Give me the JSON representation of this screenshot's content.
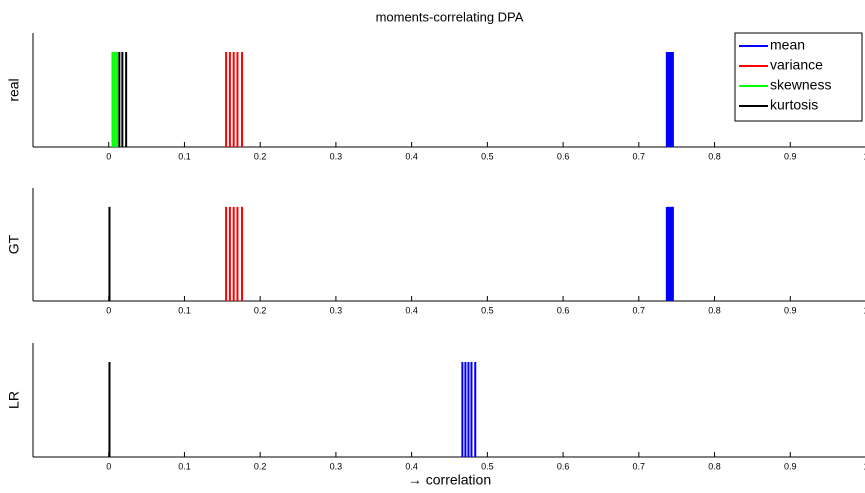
{
  "chart_data": [
    {
      "type": "spike",
      "title": "moments-correlating DPA",
      "ylabel": "real",
      "xlim": [
        -0.1,
        1.0
      ],
      "xticks": [
        0,
        0.1,
        0.2,
        0.3,
        0.4,
        0.5,
        0.6,
        0.7,
        0.8,
        0.9,
        1
      ],
      "ylim": [
        0,
        1.2
      ],
      "stem_height": 1,
      "legend": "upper right",
      "series": [
        {
          "name": "mean",
          "color": "#0000ff",
          "x": [
            0.737,
            0.739,
            0.741,
            0.743,
            0.745
          ]
        },
        {
          "name": "variance",
          "color": "#ff0000",
          "x": [
            0.155,
            0.16,
            0.165,
            0.17,
            0.176
          ]
        },
        {
          "name": "skewness",
          "color": "#00ff00",
          "x": [
            0.005,
            0.008,
            0.011
          ]
        },
        {
          "name": "kurtosis",
          "color": "#000000",
          "x": [
            0.014,
            0.018,
            0.023
          ]
        }
      ]
    },
    {
      "type": "spike",
      "ylabel": "GT",
      "xlim": [
        -0.1,
        1.0
      ],
      "xticks": [
        0,
        0.1,
        0.2,
        0.3,
        0.4,
        0.5,
        0.6,
        0.7,
        0.8,
        0.9,
        1
      ],
      "ylim": [
        0,
        1.2
      ],
      "stem_height": 1,
      "series": [
        {
          "color": "#0000ff",
          "x": [
            0.737,
            0.739,
            0.741,
            0.743,
            0.745
          ]
        },
        {
          "color": "#ff0000",
          "x": [
            0.155,
            0.16,
            0.165,
            0.17,
            0.176
          ]
        },
        {
          "color": "#00ff00",
          "x": [
            0.001
          ]
        },
        {
          "color": "#000000",
          "x": [
            0.001
          ]
        }
      ]
    },
    {
      "type": "spike",
      "ylabel": "LR",
      "xlabel": "→ correlation",
      "xlim": [
        -0.1,
        1.0
      ],
      "xticks": [
        0,
        0.1,
        0.2,
        0.3,
        0.4,
        0.5,
        0.6,
        0.7,
        0.8,
        0.9,
        1
      ],
      "ylim": [
        0,
        1.2
      ],
      "stem_height": 1,
      "series": [
        {
          "color": "#0000ff",
          "x": [
            0.467,
            0.471,
            0.475,
            0.479,
            0.484
          ]
        },
        {
          "color": "#ff0000",
          "x": [
            0.001
          ]
        },
        {
          "color": "#00ff00",
          "x": [
            0.001
          ]
        },
        {
          "color": "#000000",
          "x": [
            0.001
          ]
        }
      ]
    }
  ]
}
